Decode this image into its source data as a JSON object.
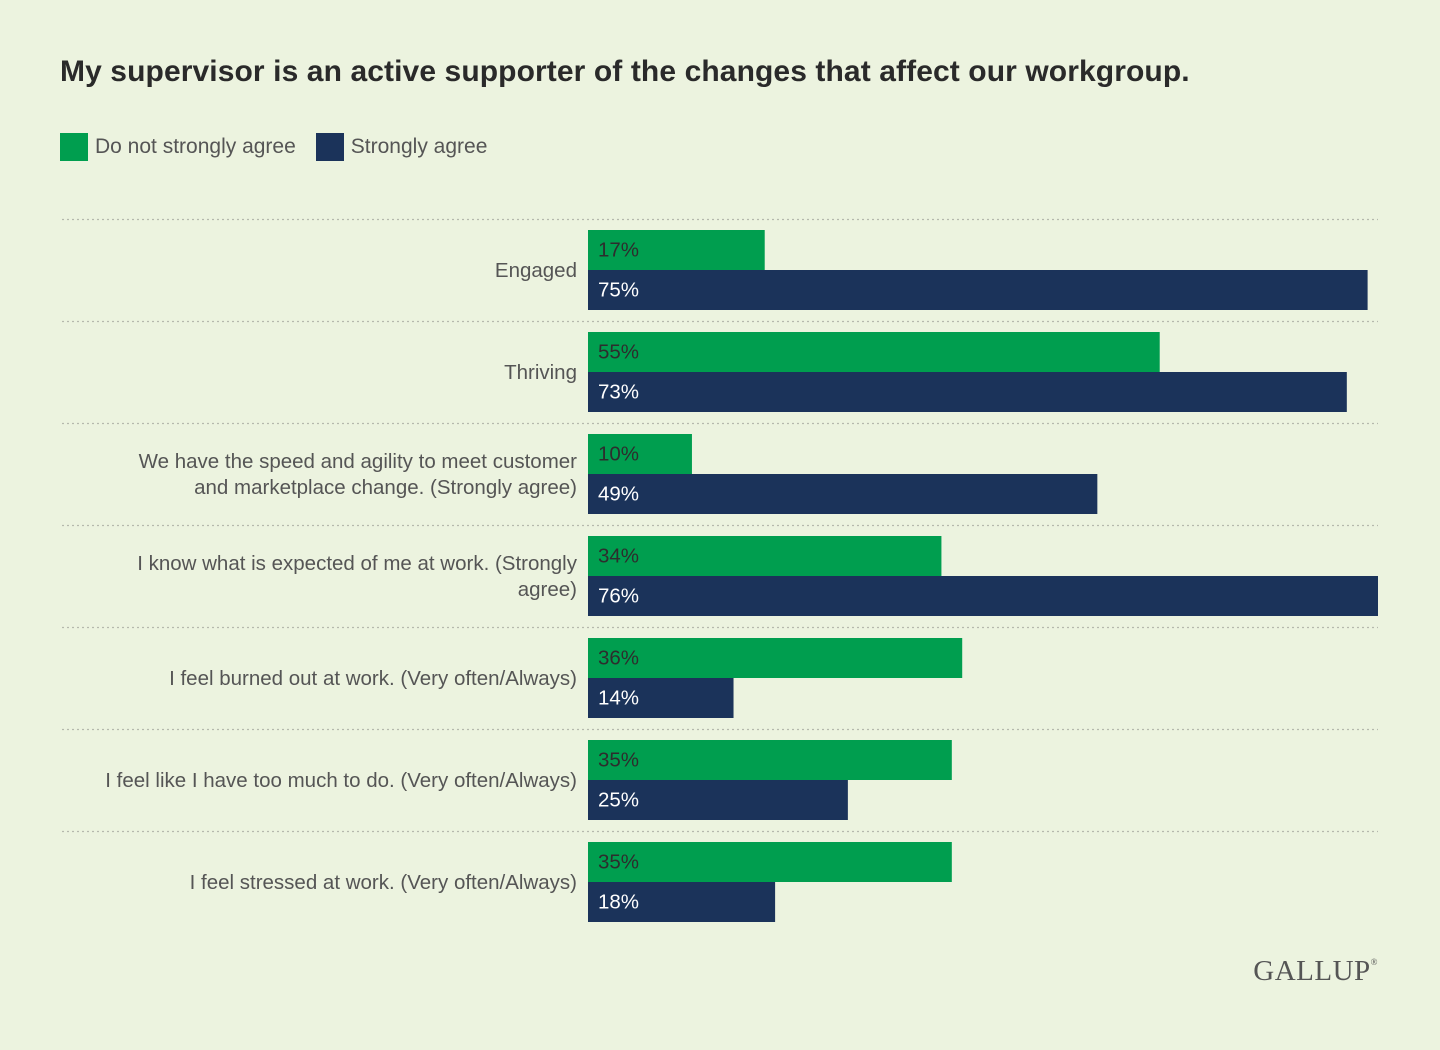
{
  "chart_data": {
    "type": "bar",
    "orientation": "horizontal",
    "title": "My supervisor is an active supporter of the changes that affect our workgroup.",
    "xlabel": "",
    "ylabel": "",
    "xlim": [
      0,
      76
    ],
    "grid": false,
    "legend_position": "top-left",
    "value_suffix": "%",
    "categories": [
      "Engaged",
      "Thriving",
      "We have the speed and agility to meet customer and marketplace change. (Strongly agree)",
      "I know what is expected of me at work. (Strongly agree)",
      "I feel burned out at work. (Very often/Always)",
      "I feel like I have too much to do. (Very often/Always)",
      "I feel stressed at work. (Very often/Always)"
    ],
    "category_lines": [
      [
        "Engaged"
      ],
      [
        "Thriving"
      ],
      [
        "We have the speed and agility to meet customer",
        "and marketplace change. (Strongly agree)"
      ],
      [
        "I know what is expected of me at work. (Strongly",
        "agree)"
      ],
      [
        "I feel burned out at work. (Very often/Always)"
      ],
      [
        "I feel like I have too much to do. (Very often/Always)"
      ],
      [
        "I feel stressed at work. (Very often/Always)"
      ]
    ],
    "series": [
      {
        "name": "Do not strongly agree",
        "color": "#009e4f",
        "label_color": "#2d2d2d",
        "values": [
          17,
          55,
          10,
          34,
          36,
          35,
          35
        ]
      },
      {
        "name": "Strongly agree",
        "color": "#1b335a",
        "label_color": "#ffffff",
        "values": [
          75,
          73,
          49,
          76,
          14,
          25,
          18
        ]
      }
    ]
  },
  "brand": {
    "name": "GALLUP",
    "mark": "®"
  }
}
